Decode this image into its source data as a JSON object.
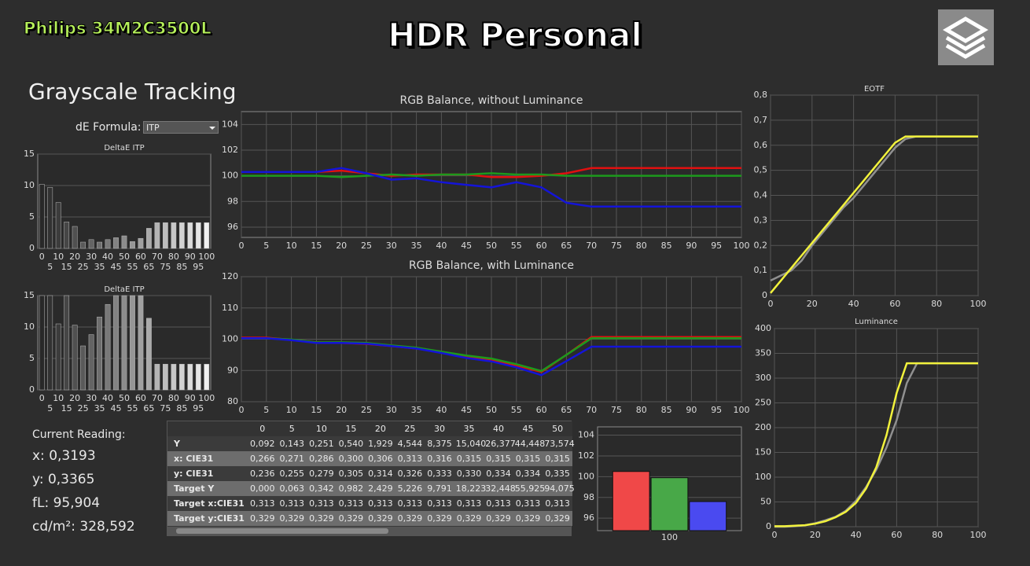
{
  "header": {
    "brand": "Philips 34M2C3500L",
    "title": "HDR Personal",
    "section": "Grayscale Tracking",
    "formula_label": "dE Formula:",
    "formula_value": "ITP"
  },
  "reading": {
    "label": "Current Reading:",
    "items": [
      "x: 0,3193",
      "y: 0,3365",
      "fL: 95,904",
      "cd/m²: 328,592"
    ]
  },
  "table": {
    "columns": [
      "0",
      "5",
      "10",
      "15",
      "20",
      "25",
      "30",
      "35",
      "40",
      "45",
      "50"
    ],
    "rows": [
      {
        "label": "Y",
        "cells": [
          "0,092",
          "0,143",
          "0,251",
          "0,540",
          "1,929",
          "4,544",
          "8,375",
          "15,040",
          "26,377",
          "44,448",
          "73,574"
        ]
      },
      {
        "label": "x: CIE31",
        "cells": [
          "0,266",
          "0,271",
          "0,286",
          "0,300",
          "0,306",
          "0,313",
          "0,316",
          "0,315",
          "0,315",
          "0,315",
          "0,315"
        ]
      },
      {
        "label": "y: CIE31",
        "cells": [
          "0,236",
          "0,255",
          "0,279",
          "0,305",
          "0,314",
          "0,326",
          "0,333",
          "0,330",
          "0,334",
          "0,334",
          "0,335"
        ]
      },
      {
        "label": "Target Y",
        "cells": [
          "0,000",
          "0,063",
          "0,342",
          "0,982",
          "2,429",
          "5,226",
          "9,791",
          "18,223",
          "32,448",
          "55,925",
          "94,075"
        ]
      },
      {
        "label": "Target x:CIE31",
        "cells": [
          "0,313",
          "0,313",
          "0,313",
          "0,313",
          "0,313",
          "0,313",
          "0,313",
          "0,313",
          "0,313",
          "0,313",
          "0,313"
        ]
      },
      {
        "label": "Target y:CIE31",
        "cells": [
          "0,329",
          "0,329",
          "0,329",
          "0,329",
          "0,329",
          "0,329",
          "0,329",
          "0,329",
          "0,329",
          "0,329",
          "0,329"
        ]
      }
    ]
  },
  "chart_data": [
    {
      "type": "bar",
      "title": "DeltaE ITP",
      "categories": [
        "0",
        "5",
        "10",
        "15",
        "20",
        "25",
        "30",
        "35",
        "40",
        "45",
        "50",
        "55",
        "60",
        "65",
        "70",
        "75",
        "80",
        "85",
        "90",
        "95",
        "100"
      ],
      "values": [
        10.2,
        9.7,
        7.3,
        4.2,
        3.5,
        1.0,
        1.4,
        1.0,
        1.4,
        1.7,
        2.0,
        1.1,
        1.6,
        3.2,
        4.1,
        4.1,
        4.1,
        4.1,
        4.1,
        4.1,
        4.1
      ],
      "ylim": [
        0,
        15
      ],
      "yticks": [
        0,
        5,
        10,
        15
      ],
      "grid": true
    },
    {
      "type": "bar",
      "title": "DeltaE ITP",
      "categories": [
        "0",
        "5",
        "10",
        "15",
        "20",
        "25",
        "30",
        "35",
        "40",
        "45",
        "50",
        "55",
        "60",
        "65",
        "70",
        "75",
        "80",
        "85",
        "90",
        "95",
        "100"
      ],
      "values": [
        15,
        15,
        10.5,
        15,
        10.3,
        7.0,
        8.8,
        11.6,
        13.6,
        15,
        15,
        15,
        15,
        11.4,
        4.1,
        4.1,
        4.1,
        4.1,
        4.1,
        4.1,
        4.1
      ],
      "ylim": [
        0,
        15
      ],
      "yticks": [
        0,
        5,
        10,
        15
      ],
      "grid": true
    },
    {
      "type": "line",
      "title": "RGB Balance, without Luminance",
      "x": [
        0,
        5,
        10,
        15,
        20,
        25,
        30,
        35,
        40,
        45,
        50,
        55,
        60,
        65,
        70,
        75,
        80,
        85,
        90,
        95,
        100
      ],
      "xlim": [
        0,
        100
      ],
      "xticks": [
        0,
        5,
        10,
        15,
        20,
        25,
        30,
        35,
        40,
        45,
        50,
        55,
        60,
        65,
        70,
        75,
        80,
        85,
        90,
        95,
        100
      ],
      "ylim": [
        95.2,
        105
      ],
      "yticks": [
        96,
        98,
        100,
        102,
        104
      ],
      "grid": true,
      "series": [
        {
          "color": "#e01010",
          "values": [
            100.3,
            100.3,
            100.3,
            100.3,
            100.4,
            100.2,
            100.0,
            100.1,
            100.1,
            100.1,
            99.9,
            99.9,
            100.0,
            100.2,
            100.6,
            100.6,
            100.6,
            100.6,
            100.6,
            100.6,
            100.6
          ]
        },
        {
          "color": "#1c9a1c",
          "values": [
            100,
            100,
            100,
            100,
            99.9,
            100,
            100.1,
            100,
            100.1,
            100.1,
            100.2,
            100.1,
            100.1,
            100,
            100,
            100,
            100,
            100,
            100,
            100,
            100
          ]
        },
        {
          "color": "#1414d8",
          "values": [
            100.3,
            100.3,
            100.3,
            100.3,
            100.6,
            100.2,
            99.7,
            99.8,
            99.5,
            99.3,
            99.1,
            99.5,
            99.1,
            97.9,
            97.6,
            97.6,
            97.6,
            97.6,
            97.6,
            97.6,
            97.6
          ]
        }
      ]
    },
    {
      "type": "line",
      "title": "RGB Balance, with Luminance",
      "x": [
        0,
        5,
        10,
        15,
        20,
        25,
        30,
        35,
        40,
        45,
        50,
        55,
        60,
        65,
        70,
        75,
        80,
        85,
        90,
        95,
        100
      ],
      "xlim": [
        0,
        100
      ],
      "xticks": [
        0,
        5,
        10,
        15,
        20,
        25,
        30,
        35,
        40,
        45,
        50,
        55,
        60,
        65,
        70,
        75,
        80,
        85,
        90,
        95,
        100
      ],
      "ylim": [
        80,
        120
      ],
      "yticks": [
        80,
        90,
        100,
        110,
        120
      ],
      "grid": true,
      "series": [
        {
          "color": "#e01010",
          "values": [
            100.5,
            100.5,
            99.8,
            99,
            98.8,
            98.5,
            97.8,
            97,
            95.8,
            94.3,
            93.3,
            91.6,
            89.5,
            95,
            100.7,
            100.7,
            100.7,
            100.7,
            100.7,
            100.7,
            100.7
          ]
        },
        {
          "color": "#1c9a1c",
          "values": [
            100.3,
            100.3,
            99.9,
            99,
            99,
            98.8,
            98,
            97.3,
            96,
            94.8,
            93.8,
            92,
            89.8,
            95,
            100.3,
            100.3,
            100.3,
            100.3,
            100.3,
            100.3,
            100.3
          ]
        },
        {
          "color": "#1414d8",
          "values": [
            100.3,
            100.3,
            99.7,
            98.8,
            98.8,
            98.6,
            97.8,
            97,
            95.6,
            94,
            92.9,
            91,
            88.5,
            93,
            97.6,
            97.6,
            97.6,
            97.6,
            97.6,
            97.6,
            97.6
          ]
        }
      ]
    },
    {
      "type": "line",
      "title": "EOTF",
      "x": [
        0,
        5,
        10,
        15,
        20,
        25,
        30,
        35,
        40,
        45,
        50,
        55,
        60,
        65,
        70,
        75,
        80,
        85,
        90,
        95,
        100
      ],
      "xlim": [
        0,
        100
      ],
      "xticks": [
        0,
        20,
        40,
        60,
        80,
        100
      ],
      "ylim": [
        0,
        0.8
      ],
      "yticks": [
        0,
        {
          "value": 0.1,
          "label": "0,1"
        },
        {
          "value": 0.2,
          "label": "0,2"
        },
        {
          "value": 0.3,
          "label": "0,3"
        },
        {
          "value": 0.4,
          "label": "0,4"
        },
        {
          "value": 0.5,
          "label": "0,5"
        },
        {
          "value": 0.6,
          "label": "0,6"
        },
        {
          "value": 0.7,
          "label": "0,7"
        },
        {
          "value": 0.8,
          "label": "0,8"
        }
      ],
      "grid": true,
      "series": [
        {
          "color": "#909090",
          "values": [
            0.06,
            0.08,
            0.1,
            0.14,
            0.2,
            0.25,
            0.3,
            0.35,
            0.39,
            0.44,
            0.49,
            0.54,
            0.59,
            0.625,
            0.635,
            0.635,
            0.635,
            0.635,
            0.635,
            0.635,
            0.635
          ]
        },
        {
          "color": "#f2f23c",
          "values": [
            0.01,
            0.06,
            0.11,
            0.16,
            0.21,
            0.26,
            0.31,
            0.36,
            0.41,
            0.46,
            0.51,
            0.56,
            0.61,
            0.635,
            0.635,
            0.635,
            0.635,
            0.635,
            0.635,
            0.635,
            0.635
          ]
        }
      ]
    },
    {
      "type": "line",
      "title": "Luminance",
      "x": [
        0,
        5,
        10,
        15,
        20,
        25,
        30,
        35,
        40,
        45,
        50,
        55,
        60,
        65,
        70,
        75,
        80,
        85,
        90,
        95,
        100
      ],
      "xlim": [
        0,
        100
      ],
      "xticks": [
        0,
        20,
        40,
        60,
        80,
        100
      ],
      "ylim": [
        0,
        400
      ],
      "yticks": [
        0,
        50,
        100,
        150,
        200,
        250,
        300,
        350,
        400
      ],
      "grid": true,
      "series": [
        {
          "color": "#909090",
          "values": [
            0,
            0,
            1,
            3,
            7,
            13,
            20,
            32,
            52,
            80,
            115,
            160,
            215,
            290,
            330,
            330,
            330,
            330,
            330,
            330,
            330
          ]
        },
        {
          "color": "#f2f23c",
          "values": [
            1,
            1,
            2,
            3,
            6,
            11,
            19,
            30,
            48,
            77,
            120,
            185,
            270,
            330,
            330,
            330,
            330,
            330,
            330,
            330,
            330
          ]
        }
      ]
    },
    {
      "type": "bar",
      "categories": [
        "100"
      ],
      "ylim": [
        94.8,
        104.8
      ],
      "yticks": [
        96,
        98,
        100,
        102,
        104
      ],
      "grid": true,
      "series": [
        {
          "color": "#f04848",
          "values": [
            100.5
          ]
        },
        {
          "color": "#48a848",
          "values": [
            99.9
          ]
        },
        {
          "color": "#4a4af0",
          "values": [
            97.6
          ]
        }
      ]
    }
  ]
}
